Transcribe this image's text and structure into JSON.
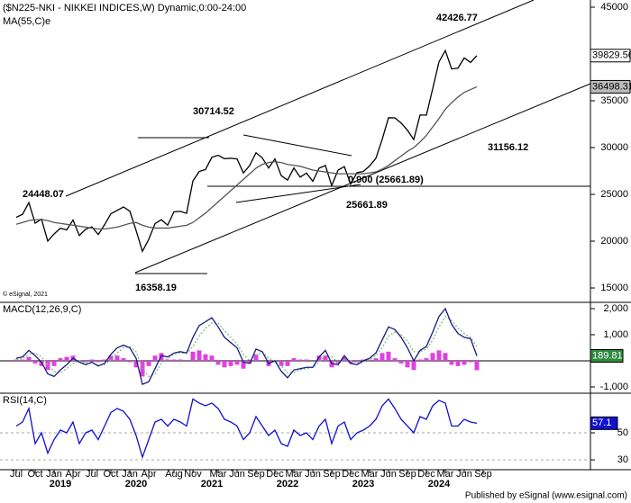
{
  "chart_data": [
    {
      "type": "line",
      "title": "($N225-NKI - NIKKEI INDICES,W) Dynamic,0:00-24:00",
      "copyright": "© eSignal, 2021",
      "x": [
        "2018-07",
        "2018-08",
        "2018-09",
        "2018-10",
        "2018-11",
        "2018-12",
        "2019-01",
        "2019-02",
        "2019-03",
        "2019-04",
        "2019-05",
        "2019-06",
        "2019-07",
        "2019-08",
        "2019-09",
        "2019-10",
        "2019-11",
        "2019-12",
        "2020-01",
        "2020-02",
        "2020-03",
        "2020-04",
        "2020-05",
        "2020-06",
        "2020-07",
        "2020-08",
        "2020-09",
        "2020-10",
        "2020-11",
        "2020-12",
        "2021-01",
        "2021-02",
        "2021-03",
        "2021-04",
        "2021-05",
        "2021-06",
        "2021-07",
        "2021-08",
        "2021-09",
        "2021-10",
        "2021-11",
        "2021-12",
        "2022-01",
        "2022-02",
        "2022-03",
        "2022-04",
        "2022-05",
        "2022-06",
        "2022-07",
        "2022-08",
        "2022-09",
        "2022-10",
        "2022-11",
        "2022-12",
        "2023-01",
        "2023-02",
        "2023-03",
        "2023-04",
        "2023-05",
        "2023-06",
        "2023-07",
        "2023-08",
        "2023-09",
        "2023-10",
        "2023-11",
        "2023-12",
        "2024-01",
        "2024-02",
        "2024-03",
        "2024-04",
        "2024-05",
        "2024-06",
        "2024-07",
        "2024-08"
      ],
      "xticks": [
        {
          "value": "2018-07",
          "label": "Jul"
        },
        {
          "value": "2018-10",
          "label": "Oct"
        },
        {
          "value": "2019-01",
          "label": "Jan"
        },
        {
          "value": "2019-04",
          "label": "Apr"
        },
        {
          "value": "2019-07",
          "label": "Jul"
        },
        {
          "value": "2019-10",
          "label": "Oct"
        },
        {
          "value": "2020-01",
          "label": "Jan"
        },
        {
          "value": "2020-04",
          "label": "Apr"
        },
        {
          "value": "2020-08",
          "label": "Aug"
        },
        {
          "value": "2020-11",
          "label": "Nov"
        },
        {
          "value": "2021-03",
          "label": "Mar"
        },
        {
          "value": "2021-06",
          "label": "Jun"
        },
        {
          "value": "2021-09",
          "label": "Sep"
        },
        {
          "value": "2021-12",
          "label": "Dec"
        },
        {
          "value": "2022-03",
          "label": "Mar"
        },
        {
          "value": "2022-06",
          "label": "Jun"
        },
        {
          "value": "2022-09",
          "label": "Sep"
        },
        {
          "value": "2022-12",
          "label": "Dec"
        },
        {
          "value": "2023-03",
          "label": "Mar"
        },
        {
          "value": "2023-06",
          "label": "Jun"
        },
        {
          "value": "2023-09",
          "label": "Sep"
        },
        {
          "value": "2023-12",
          "label": "Dec"
        },
        {
          "value": "2024-03",
          "label": "Mar"
        },
        {
          "value": "2024-06",
          "label": "Jun"
        },
        {
          "value": "2024-09",
          "label": "Sep"
        }
      ],
      "years": [
        2019,
        2020,
        2021,
        2022,
        2023,
        2024
      ],
      "ylim": [
        13560,
        45770
      ],
      "yticks": [
        15000,
        20000,
        25000,
        30000,
        35000,
        40000,
        45000
      ],
      "annotations": [
        42426.77,
        30714.52,
        24448.07,
        16358.19,
        31156.12,
        "0.900 (25661.89)",
        25661.89
      ],
      "series": [
        {
          "color": "#000000",
          "values": [
            22554,
            22865,
            24120,
            21920,
            22351,
            20014,
            20773,
            21385,
            21205,
            22258,
            20601,
            21275,
            21521,
            20704,
            21755,
            22927,
            23293,
            23656,
            23205,
            21142,
            18917,
            20193,
            21877,
            22288,
            21710,
            23139,
            23185,
            22977,
            26433,
            27444,
            27663,
            28966,
            29178,
            28812,
            28860,
            28791,
            27283,
            28089,
            29452,
            28892,
            27821,
            28791,
            27001,
            26526,
            27821,
            26847,
            27279,
            26393,
            27801,
            28091,
            25937,
            27587,
            27968,
            26094,
            27327,
            27445,
            28041,
            28856,
            30887,
            33189,
            33172,
            32619,
            31857,
            30858,
            33486,
            33464,
            36286,
            39166,
            40369,
            38405,
            38487,
            39583,
            39101,
            39829.56
          ]
        },
        {
          "name": "MA(55,C)e",
          "color": "#555555",
          "values": [
            21800,
            22000,
            22200,
            22300,
            22300,
            22200,
            22000,
            21900,
            21800,
            21700,
            21600,
            21500,
            21400,
            21300,
            21300,
            21400,
            21500,
            21700,
            21900,
            22000,
            21700,
            21500,
            21400,
            21400,
            21400,
            21500,
            21600,
            21700,
            22000,
            22500,
            23000,
            23600,
            24200,
            24800,
            25400,
            26000,
            26600,
            27200,
            27800,
            28200,
            28400,
            28500,
            28400,
            28200,
            28100,
            28000,
            27800,
            27600,
            27500,
            27400,
            27300,
            27200,
            27200,
            27200,
            27200,
            27200,
            27300,
            27400,
            27700,
            28100,
            28600,
            29100,
            29600,
            30000,
            30600,
            31300,
            32200,
            33100,
            34100,
            34800,
            35400,
            35900,
            36200,
            36498.31
          ]
        }
      ]
    },
    {
      "type": "macd",
      "title": "MACD(12,26,9,C)",
      "ylim": [
        -1241,
        2172
      ],
      "yticks": [
        {
          "value": 2000,
          "label": "2,000"
        },
        {
          "value": 1000,
          "label": "1,000"
        },
        {
          "value": -1000,
          "label": "-1,000"
        }
      ],
      "series": [
        {
          "color": "#1a1a80",
          "values": [
            100,
            150,
            400,
            200,
            -50,
            -500,
            -600,
            -350,
            -150,
            100,
            -50,
            -150,
            -50,
            -200,
            -100,
            250,
            500,
            600,
            500,
            100,
            -900,
            -800,
            -300,
            200,
            150,
            300,
            350,
            300,
            900,
            1350,
            1500,
            1650,
            1300,
            900,
            700,
            500,
            -50,
            -100,
            450,
            350,
            -100,
            0,
            -400,
            -650,
            -350,
            -300,
            -250,
            -250,
            150,
            400,
            -100,
            -150,
            200,
            -100,
            -150,
            0,
            100,
            300,
            800,
            1300,
            1200,
            900,
            500,
            0,
            400,
            550,
            1100,
            1700,
            2000,
            1400,
            1050,
            900,
            850,
            189.81
          ]
        },
        {
          "color": "#7fbf7f",
          "values": [
            50,
            100,
            250,
            300,
            150,
            -150,
            -400,
            -450,
            -300,
            -100,
            0,
            -100,
            -100,
            -150,
            -150,
            50,
            300,
            500,
            550,
            350,
            -300,
            -600,
            -500,
            -100,
            100,
            250,
            300,
            300,
            550,
            950,
            1250,
            1450,
            1450,
            1150,
            900,
            650,
            250,
            0,
            200,
            350,
            100,
            0,
            -200,
            -450,
            -450,
            -350,
            -300,
            -250,
            -50,
            200,
            150,
            -50,
            50,
            0,
            -100,
            -50,
            50,
            200,
            500,
            950,
            1100,
            1000,
            750,
            350,
            350,
            450,
            800,
            1300,
            1700,
            1550,
            1250,
            1050,
            900,
            550
          ]
        },
        {
          "color": "#e040e0",
          "values": [
            50,
            50,
            150,
            -100,
            -200,
            -350,
            -200,
            100,
            150,
            200,
            -50,
            -50,
            50,
            -50,
            50,
            200,
            200,
            100,
            -50,
            -250,
            -600,
            -200,
            200,
            300,
            50,
            50,
            50,
            0,
            350,
            400,
            250,
            200,
            -150,
            -250,
            -200,
            -150,
            -300,
            -100,
            250,
            0,
            -200,
            0,
            -200,
            -200,
            100,
            50,
            50,
            0,
            200,
            200,
            -250,
            -100,
            150,
            -100,
            -50,
            50,
            50,
            100,
            300,
            350,
            100,
            -100,
            -250,
            -350,
            50,
            100,
            300,
            400,
            300,
            -150,
            -200,
            -150,
            -50,
            -360
          ]
        }
      ]
    },
    {
      "type": "rsi",
      "title": "RSI(14,C)",
      "ylim": [
        22.7,
        77.3
      ],
      "yticks": [
        30,
        50
      ],
      "series": [
        {
          "color": "#1010d0",
          "values": [
            55,
            58,
            68,
            42,
            50,
            35,
            45,
            52,
            50,
            58,
            42,
            50,
            52,
            45,
            55,
            65,
            68,
            66,
            60,
            48,
            32,
            45,
            58,
            60,
            55,
            60,
            58,
            55,
            75,
            72,
            70,
            72,
            68,
            60,
            58,
            55,
            45,
            50,
            62,
            55,
            48,
            52,
            42,
            40,
            52,
            48,
            50,
            45,
            55,
            60,
            42,
            55,
            58,
            45,
            50,
            52,
            55,
            60,
            70,
            75,
            68,
            60,
            55,
            50,
            62,
            60,
            70,
            74,
            72,
            55,
            55,
            60,
            58,
            57.1
          ]
        }
      ]
    }
  ],
  "footer": "Published by eSignal (www.esignal.com)"
}
